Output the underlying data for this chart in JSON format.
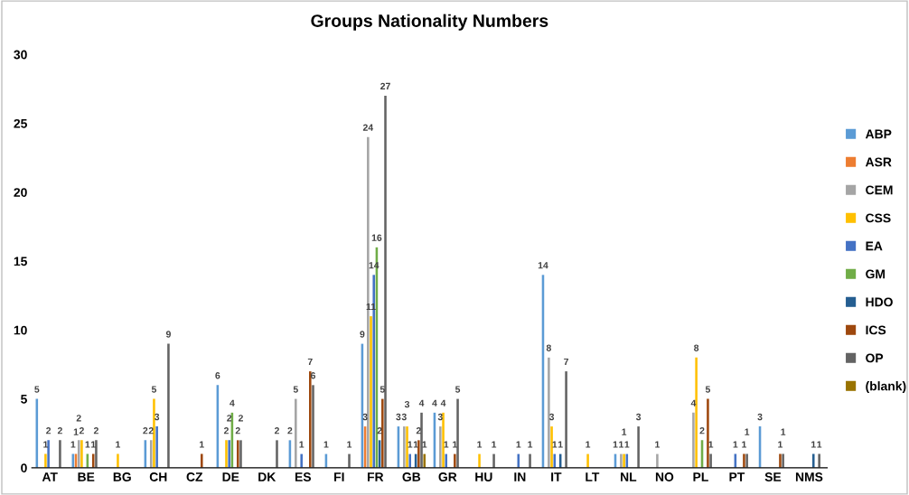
{
  "chart_data": {
    "type": "bar",
    "title": "Groups Nationality Numbers",
    "categories": [
      "AT",
      "BE",
      "BG",
      "CH",
      "CZ",
      "DE",
      "DK",
      "ES",
      "FI",
      "FR",
      "GB",
      "GR",
      "HU",
      "IN",
      "IT",
      "LT",
      "NL",
      "NO",
      "PL",
      "PT",
      "SE",
      "NMS"
    ],
    "series": [
      {
        "name": "ABP",
        "color": "#5b9bd5",
        "values": [
          5,
          1,
          null,
          2,
          null,
          6,
          null,
          2,
          1,
          9,
          3,
          4,
          null,
          null,
          14,
          null,
          1,
          null,
          null,
          null,
          3,
          null
        ]
      },
      {
        "name": "ASR",
        "color": "#ed7d31",
        "values": [
          null,
          1,
          null,
          null,
          null,
          null,
          null,
          null,
          null,
          3,
          null,
          null,
          null,
          null,
          null,
          null,
          null,
          null,
          null,
          null,
          null,
          null
        ]
      },
      {
        "name": "CEM",
        "color": "#a5a5a5",
        "values": [
          null,
          2,
          null,
          2,
          null,
          null,
          null,
          5,
          null,
          24,
          3,
          3,
          null,
          null,
          8,
          null,
          1,
          1,
          4,
          null,
          null,
          null
        ]
      },
      {
        "name": "CSS",
        "color": "#ffc000",
        "values": [
          1,
          2,
          1,
          5,
          null,
          2,
          null,
          null,
          null,
          11,
          3,
          4,
          1,
          null,
          3,
          1,
          1,
          null,
          8,
          null,
          null,
          null
        ]
      },
      {
        "name": "EA",
        "color": "#4472c4",
        "values": [
          2,
          null,
          null,
          3,
          null,
          2,
          null,
          1,
          null,
          14,
          1,
          1,
          null,
          1,
          1,
          null,
          1,
          null,
          null,
          1,
          null,
          null
        ]
      },
      {
        "name": "GM",
        "color": "#70ad47",
        "values": [
          null,
          1,
          null,
          null,
          null,
          4,
          null,
          null,
          null,
          16,
          null,
          null,
          null,
          null,
          null,
          null,
          null,
          null,
          2,
          null,
          null,
          null
        ]
      },
      {
        "name": "HDO",
        "color": "#255e91",
        "values": [
          null,
          null,
          null,
          null,
          null,
          null,
          null,
          null,
          null,
          2,
          1,
          null,
          null,
          null,
          1,
          null,
          null,
          null,
          null,
          null,
          null,
          1
        ]
      },
      {
        "name": "ICS",
        "color": "#9e480e",
        "values": [
          null,
          1,
          null,
          null,
          1,
          2,
          null,
          7,
          null,
          5,
          2,
          1,
          null,
          null,
          null,
          null,
          null,
          null,
          5,
          1,
          1,
          null
        ]
      },
      {
        "name": "OP",
        "color": "#636363",
        "values": [
          2,
          2,
          null,
          9,
          null,
          2,
          2,
          6,
          1,
          27,
          4,
          5,
          1,
          1,
          7,
          null,
          3,
          null,
          1,
          1,
          1,
          1
        ]
      },
      {
        "name": "(blank)",
        "color": "#997300",
        "values": [
          null,
          null,
          null,
          null,
          null,
          null,
          null,
          null,
          null,
          null,
          1,
          null,
          null,
          null,
          null,
          null,
          null,
          null,
          null,
          null,
          null,
          null
        ]
      }
    ],
    "ylim": [
      0,
      30
    ],
    "yticks": [
      0,
      5,
      10,
      15,
      20,
      25,
      30
    ],
    "grid": false,
    "legend": "right",
    "data_labels": true
  }
}
